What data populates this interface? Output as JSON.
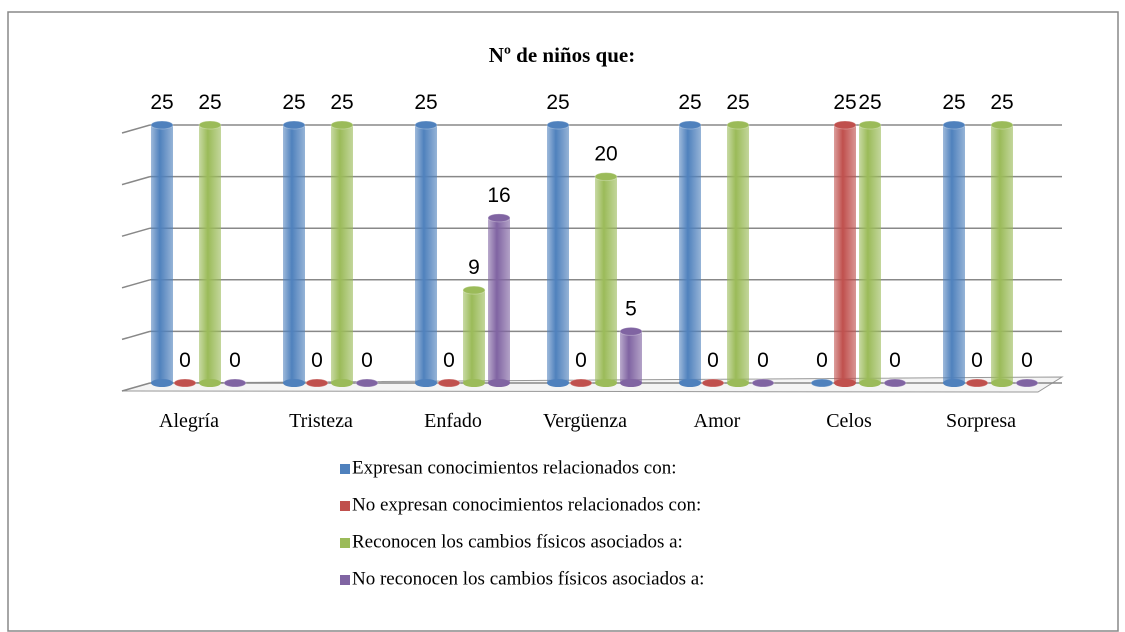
{
  "chart_data": {
    "type": "bar3d",
    "title": "Nº de niños que:",
    "categories": [
      "Alegría",
      "Tristeza",
      "Enfado",
      "Vergüenza",
      "Amor",
      "Celos",
      "Sorpresa"
    ],
    "series": [
      {
        "name": "Expresan conocimientos relacionados con:",
        "color": "#4f81bd",
        "values": [
          25,
          25,
          25,
          25,
          25,
          0,
          25
        ]
      },
      {
        "name": "No expresan conocimientos relacionados con:",
        "color": "#c0504d",
        "values": [
          0,
          0,
          0,
          0,
          0,
          25,
          0
        ]
      },
      {
        "name": "Reconocen los cambios físicos asociados a:",
        "color": "#9bbb59",
        "values": [
          25,
          25,
          9,
          20,
          25,
          25,
          25
        ]
      },
      {
        "name": "No reconocen los cambios físicos asociados a:",
        "color": "#8064a2",
        "values": [
          0,
          0,
          16,
          5,
          0,
          0,
          0
        ]
      }
    ],
    "ylim": [
      0,
      25
    ],
    "yticks": [
      0,
      5,
      10,
      15,
      20,
      25
    ],
    "grid": true,
    "legend": "bottom"
  }
}
